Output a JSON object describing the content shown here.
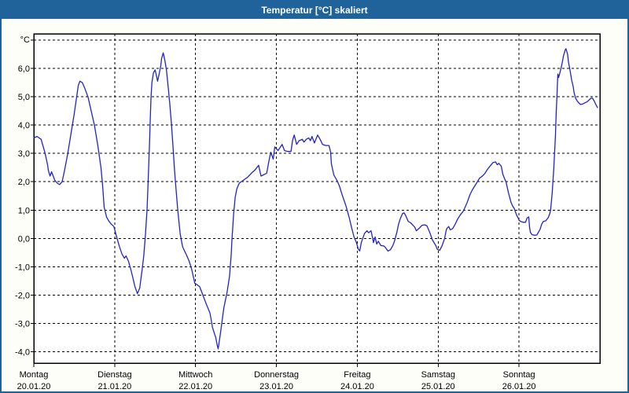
{
  "window": {
    "title": "Temperatur [°C] skaliert",
    "titlebar_color": "#20639a",
    "frame_color": "#20639a",
    "background_color": "#fdfef8"
  },
  "chart_data": {
    "type": "line",
    "title": "Temperatur [°C] skaliert",
    "ylabel": "°C",
    "xlabel": "",
    "ylim": [
      -4.4,
      7.2
    ],
    "x_span_days": 7,
    "grid": "dashed",
    "legend": "none",
    "plot_background": "#ffffff",
    "line_color": "#2222cc",
    "y_ticks": [
      {
        "value": 7,
        "label": ""
      },
      {
        "value": 6,
        "label": "6,0"
      },
      {
        "value": 5,
        "label": "5,0"
      },
      {
        "value": 4,
        "label": "4,0"
      },
      {
        "value": 3,
        "label": "3,0"
      },
      {
        "value": 2,
        "label": "2,0"
      },
      {
        "value": 1,
        "label": "1,0"
      },
      {
        "value": 0,
        "label": "0,0"
      },
      {
        "value": -1,
        "label": "-1,0"
      },
      {
        "value": -2,
        "label": "-2,0"
      },
      {
        "value": -3,
        "label": "-3,0"
      },
      {
        "value": -4,
        "label": "-4,0"
      }
    ],
    "x_ticks": [
      {
        "day": "Montag",
        "date": "20.01.20"
      },
      {
        "day": "Dienstag",
        "date": "21.01.20"
      },
      {
        "day": "Mittwoch",
        "date": "22.01.20"
      },
      {
        "day": "Donnerstag",
        "date": "23.01.20"
      },
      {
        "day": "Freitag",
        "date": "24.01.20"
      },
      {
        "day": "Samstag",
        "date": "25.01.20"
      },
      {
        "day": "Sonntag",
        "date": "26.01.20"
      }
    ],
    "series": [
      {
        "name": "Temperatur",
        "points": [
          [
            0.0,
            3.55
          ],
          [
            0.04,
            3.6
          ],
          [
            0.09,
            3.5
          ],
          [
            0.14,
            3.0
          ],
          [
            0.17,
            2.6
          ],
          [
            0.18,
            2.4
          ],
          [
            0.2,
            2.2
          ],
          [
            0.22,
            2.35
          ],
          [
            0.24,
            2.2
          ],
          [
            0.26,
            2.05
          ],
          [
            0.29,
            1.95
          ],
          [
            0.32,
            1.9
          ],
          [
            0.35,
            2.0
          ],
          [
            0.38,
            2.4
          ],
          [
            0.42,
            3.0
          ],
          [
            0.46,
            3.7
          ],
          [
            0.5,
            4.4
          ],
          [
            0.53,
            5.0
          ],
          [
            0.55,
            5.4
          ],
          [
            0.57,
            5.55
          ],
          [
            0.6,
            5.5
          ],
          [
            0.63,
            5.3
          ],
          [
            0.67,
            5.0
          ],
          [
            0.71,
            4.5
          ],
          [
            0.75,
            4.0
          ],
          [
            0.79,
            3.3
          ],
          [
            0.83,
            2.5
          ],
          [
            0.85,
            1.9
          ],
          [
            0.87,
            1.1
          ],
          [
            0.9,
            0.75
          ],
          [
            0.93,
            0.6
          ],
          [
            0.96,
            0.5
          ],
          [
            0.99,
            0.42
          ],
          [
            1.03,
            0.0
          ],
          [
            1.06,
            -0.3
          ],
          [
            1.09,
            -0.55
          ],
          [
            1.12,
            -0.7
          ],
          [
            1.14,
            -0.62
          ],
          [
            1.17,
            -0.8
          ],
          [
            1.2,
            -1.1
          ],
          [
            1.23,
            -1.45
          ],
          [
            1.25,
            -1.7
          ],
          [
            1.28,
            -1.95
          ],
          [
            1.31,
            -1.75
          ],
          [
            1.34,
            -1.1
          ],
          [
            1.36,
            -0.6
          ],
          [
            1.38,
            0.1
          ],
          [
            1.4,
            1.0
          ],
          [
            1.41,
            1.7
          ],
          [
            1.43,
            3.3
          ],
          [
            1.44,
            4.2
          ],
          [
            1.45,
            5.0
          ],
          [
            1.46,
            5.5
          ],
          [
            1.48,
            5.85
          ],
          [
            1.5,
            5.95
          ],
          [
            1.52,
            5.7
          ],
          [
            1.53,
            5.55
          ],
          [
            1.55,
            5.8
          ],
          [
            1.57,
            6.1
          ],
          [
            1.58,
            6.35
          ],
          [
            1.6,
            6.55
          ],
          [
            1.62,
            6.3
          ],
          [
            1.64,
            5.95
          ],
          [
            1.66,
            5.4
          ],
          [
            1.68,
            4.8
          ],
          [
            1.7,
            4.1
          ],
          [
            1.72,
            3.3
          ],
          [
            1.74,
            2.4
          ],
          [
            1.76,
            1.7
          ],
          [
            1.78,
            1.0
          ],
          [
            1.81,
            0.15
          ],
          [
            1.84,
            -0.3
          ],
          [
            1.89,
            -0.6
          ],
          [
            1.92,
            -0.8
          ],
          [
            1.95,
            -1.07
          ],
          [
            1.98,
            -1.45
          ],
          [
            1.99,
            -1.58
          ],
          [
            2.01,
            -1.62
          ],
          [
            2.05,
            -1.7
          ],
          [
            2.09,
            -2.0
          ],
          [
            2.13,
            -2.3
          ],
          [
            2.18,
            -2.65
          ],
          [
            2.21,
            -3.15
          ],
          [
            2.25,
            -3.5
          ],
          [
            2.27,
            -3.8
          ],
          [
            2.28,
            -3.9
          ],
          [
            2.3,
            -3.5
          ],
          [
            2.32,
            -3.1
          ],
          [
            2.35,
            -2.45
          ],
          [
            2.39,
            -1.9
          ],
          [
            2.42,
            -1.35
          ],
          [
            2.44,
            -0.6
          ],
          [
            2.45,
            -0.05
          ],
          [
            2.47,
            0.85
          ],
          [
            2.49,
            1.45
          ],
          [
            2.51,
            1.75
          ],
          [
            2.54,
            1.95
          ],
          [
            2.59,
            2.05
          ],
          [
            2.64,
            2.15
          ],
          [
            2.69,
            2.3
          ],
          [
            2.73,
            2.4
          ],
          [
            2.78,
            2.58
          ],
          [
            2.81,
            2.2
          ],
          [
            2.85,
            2.26
          ],
          [
            2.88,
            2.3
          ],
          [
            2.91,
            2.77
          ],
          [
            2.93,
            3.04
          ],
          [
            2.96,
            2.8
          ],
          [
            2.98,
            3.23
          ],
          [
            3.02,
            3.1
          ],
          [
            3.07,
            3.32
          ],
          [
            3.1,
            3.1
          ],
          [
            3.14,
            3.07
          ],
          [
            3.18,
            3.07
          ],
          [
            3.2,
            3.46
          ],
          [
            3.22,
            3.65
          ],
          [
            3.25,
            3.32
          ],
          [
            3.28,
            3.45
          ],
          [
            3.32,
            3.5
          ],
          [
            3.34,
            3.4
          ],
          [
            3.37,
            3.5
          ],
          [
            3.4,
            3.55
          ],
          [
            3.42,
            3.45
          ],
          [
            3.44,
            3.6
          ],
          [
            3.47,
            3.37
          ],
          [
            3.51,
            3.65
          ],
          [
            3.54,
            3.5
          ],
          [
            3.57,
            3.32
          ],
          [
            3.61,
            3.28
          ],
          [
            3.65,
            3.28
          ],
          [
            3.67,
            3.05
          ],
          [
            3.68,
            2.63
          ],
          [
            3.71,
            2.24
          ],
          [
            3.75,
            2.04
          ],
          [
            3.78,
            1.84
          ],
          [
            3.81,
            1.56
          ],
          [
            3.86,
            1.15
          ],
          [
            3.9,
            0.74
          ],
          [
            3.93,
            0.38
          ],
          [
            3.96,
            0.05
          ],
          [
            3.99,
            -0.15
          ],
          [
            4.01,
            -0.37
          ],
          [
            4.03,
            -0.44
          ],
          [
            4.05,
            -0.14
          ],
          [
            4.09,
            0.18
          ],
          [
            4.12,
            0.27
          ],
          [
            4.14,
            0.2
          ],
          [
            4.17,
            0.27
          ],
          [
            4.19,
            0.0
          ],
          [
            4.2,
            -0.15
          ],
          [
            4.22,
            0.05
          ],
          [
            4.24,
            -0.2
          ],
          [
            4.26,
            -0.1
          ],
          [
            4.29,
            -0.25
          ],
          [
            4.33,
            -0.27
          ],
          [
            4.35,
            -0.33
          ],
          [
            4.38,
            -0.45
          ],
          [
            4.41,
            -0.4
          ],
          [
            4.44,
            -0.25
          ],
          [
            4.46,
            -0.1
          ],
          [
            4.49,
            0.22
          ],
          [
            4.51,
            0.5
          ],
          [
            4.53,
            0.68
          ],
          [
            4.56,
            0.88
          ],
          [
            4.58,
            0.9
          ],
          [
            4.6,
            0.8
          ],
          [
            4.63,
            0.6
          ],
          [
            4.66,
            0.55
          ],
          [
            4.71,
            0.4
          ],
          [
            4.73,
            0.27
          ],
          [
            4.77,
            0.37
          ],
          [
            4.8,
            0.46
          ],
          [
            4.83,
            0.48
          ],
          [
            4.86,
            0.45
          ],
          [
            4.9,
            0.18
          ],
          [
            4.93,
            -0.06
          ],
          [
            4.97,
            -0.25
          ],
          [
            4.99,
            -0.39
          ],
          [
            5.02,
            -0.42
          ],
          [
            5.05,
            -0.25
          ],
          [
            5.08,
            0.0
          ],
          [
            5.1,
            0.3
          ],
          [
            5.11,
            0.36
          ],
          [
            5.13,
            0.42
          ],
          [
            5.15,
            0.3
          ],
          [
            5.18,
            0.35
          ],
          [
            5.21,
            0.5
          ],
          [
            5.24,
            0.68
          ],
          [
            5.27,
            0.82
          ],
          [
            5.31,
            0.96
          ],
          [
            5.34,
            1.15
          ],
          [
            5.36,
            1.28
          ],
          [
            5.39,
            1.52
          ],
          [
            5.42,
            1.7
          ],
          [
            5.45,
            1.84
          ],
          [
            5.48,
            1.98
          ],
          [
            5.51,
            2.12
          ],
          [
            5.55,
            2.21
          ],
          [
            5.58,
            2.3
          ],
          [
            5.61,
            2.44
          ],
          [
            5.65,
            2.58
          ],
          [
            5.68,
            2.68
          ],
          [
            5.71,
            2.7
          ],
          [
            5.73,
            2.6
          ],
          [
            5.75,
            2.65
          ],
          [
            5.78,
            2.55
          ],
          [
            5.8,
            2.26
          ],
          [
            5.82,
            2.12
          ],
          [
            5.84,
            1.98
          ],
          [
            5.87,
            1.6
          ],
          [
            5.9,
            1.28
          ],
          [
            5.92,
            1.15
          ],
          [
            5.94,
            1.06
          ],
          [
            5.97,
            0.82
          ],
          [
            5.99,
            0.72
          ],
          [
            6.0,
            0.64
          ],
          [
            6.02,
            0.6
          ],
          [
            6.05,
            0.57
          ],
          [
            6.08,
            0.57
          ],
          [
            6.1,
            0.72
          ],
          [
            6.12,
            0.76
          ],
          [
            6.13,
            0.4
          ],
          [
            6.14,
            0.22
          ],
          [
            6.16,
            0.13
          ],
          [
            6.19,
            0.11
          ],
          [
            6.22,
            0.12
          ],
          [
            6.24,
            0.22
          ],
          [
            6.26,
            0.32
          ],
          [
            6.28,
            0.5
          ],
          [
            6.3,
            0.6
          ],
          [
            6.33,
            0.62
          ],
          [
            6.36,
            0.73
          ],
          [
            6.38,
            0.87
          ],
          [
            6.39,
            1.0
          ],
          [
            6.41,
            1.6
          ],
          [
            6.43,
            2.5
          ],
          [
            6.45,
            3.6
          ],
          [
            6.46,
            4.5
          ],
          [
            6.47,
            5.1
          ],
          [
            6.475,
            5.5
          ],
          [
            6.48,
            5.8
          ],
          [
            6.49,
            5.68
          ],
          [
            6.51,
            5.9
          ],
          [
            6.53,
            6.15
          ],
          [
            6.55,
            6.45
          ],
          [
            6.57,
            6.65
          ],
          [
            6.58,
            6.7
          ],
          [
            6.6,
            6.5
          ],
          [
            6.61,
            6.25
          ],
          [
            6.63,
            5.95
          ],
          [
            6.65,
            5.6
          ],
          [
            6.67,
            5.35
          ],
          [
            6.68,
            5.15
          ],
          [
            6.7,
            4.95
          ],
          [
            6.72,
            4.85
          ],
          [
            6.74,
            4.78
          ],
          [
            6.76,
            4.73
          ],
          [
            6.79,
            4.75
          ],
          [
            6.81,
            4.78
          ],
          [
            6.84,
            4.82
          ],
          [
            6.87,
            4.9
          ],
          [
            6.89,
            4.95
          ],
          [
            6.91,
            4.95
          ],
          [
            6.93,
            4.85
          ],
          [
            6.95,
            4.72
          ],
          [
            6.97,
            4.62
          ]
        ]
      }
    ]
  }
}
